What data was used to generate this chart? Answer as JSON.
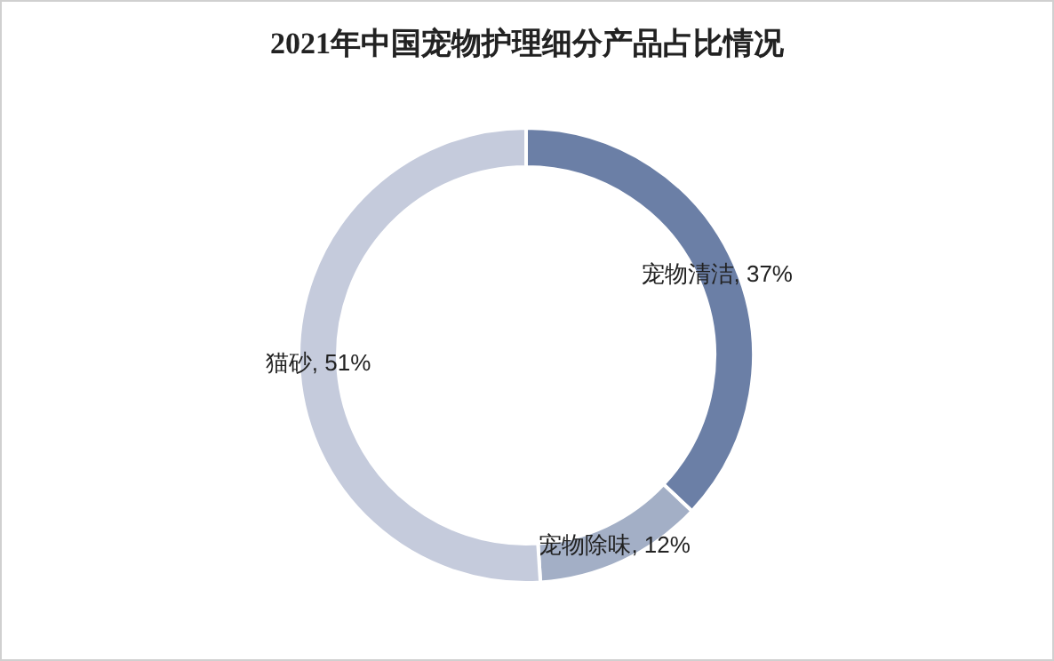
{
  "chart_data": {
    "type": "donut",
    "title": "2021年中国宠物护理细分产品占比情况",
    "categories": [
      "宠物清洁",
      "宠物除味",
      "猫砂"
    ],
    "values": [
      37,
      12,
      51
    ],
    "colors": [
      "#6b7fa6",
      "#a3afc6",
      "#c5cbdc"
    ],
    "value_labels": [
      ", 37%",
      ", 12%",
      ", 51%"
    ]
  }
}
